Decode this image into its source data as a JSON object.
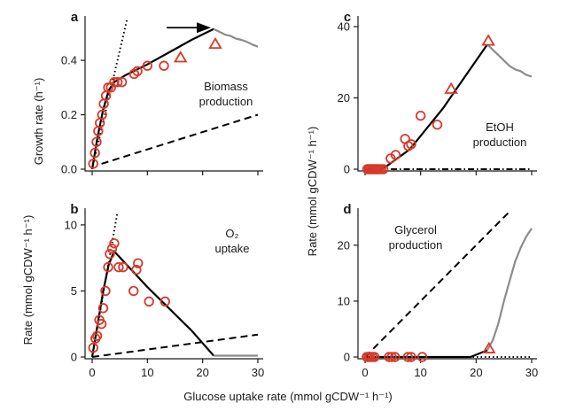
{
  "chart_data": [
    {
      "panel": "a",
      "type": "line",
      "title": "",
      "ylabel": "Growth rate (h⁻¹)",
      "xlim": [
        0,
        30
      ],
      "ylim": [
        0,
        0.55
      ],
      "xticks": [
        0,
        10,
        20,
        30
      ],
      "yticks": [
        0.0,
        0.2,
        0.4
      ],
      "ytick_labels": [
        "0.0",
        "0.2",
        "0.4"
      ],
      "show_xtick_labels": false,
      "annotation_lines": [
        "Biomass",
        "production"
      ],
      "series": [
        {
          "style": "solid-black",
          "x": [
            0,
            1,
            2,
            3,
            4,
            6,
            8,
            10,
            14,
            18,
            22
          ],
          "y": [
            0,
            0.12,
            0.22,
            0.29,
            0.32,
            0.345,
            0.365,
            0.385,
            0.43,
            0.475,
            0.515
          ]
        },
        {
          "style": "solid-gray",
          "x": [
            22,
            23,
            24,
            25,
            26,
            27,
            28,
            29,
            30
          ],
          "y": [
            0.515,
            0.505,
            0.495,
            0.49,
            0.48,
            0.475,
            0.468,
            0.458,
            0.45
          ]
        },
        {
          "style": "dashed",
          "x": [
            1.7,
            30
          ],
          "y": [
            0.02,
            0.2
          ]
        },
        {
          "style": "dotted",
          "x": [
            0,
            6.3
          ],
          "y": [
            0,
            0.55
          ]
        }
      ],
      "circles": {
        "x": [
          0.2,
          0.5,
          0.8,
          1.1,
          1.4,
          1.8,
          2.1,
          2.5,
          2.9,
          3.4,
          4.0,
          4.6,
          5.4,
          7.6,
          8.2,
          10.0,
          13.0
        ],
        "y": [
          0.02,
          0.06,
          0.1,
          0.14,
          0.17,
          0.2,
          0.24,
          0.27,
          0.3,
          0.3,
          0.32,
          0.32,
          0.32,
          0.35,
          0.36,
          0.38,
          0.38
        ]
      },
      "triangles": {
        "x": [
          16.0,
          22.3
        ],
        "y": [
          0.41,
          0.46
        ]
      },
      "arrow": {
        "x_from": 13.5,
        "x_to": 21.5,
        "y": 0.52
      }
    },
    {
      "panel": "b",
      "type": "line",
      "title": "",
      "ylabel": "Rate (mmol gCDW⁻¹ h⁻¹)",
      "xlim": [
        0,
        30
      ],
      "ylim": [
        0,
        11
      ],
      "xticks": [
        0,
        10,
        20,
        30
      ],
      "yticks": [
        0,
        5,
        10
      ],
      "ytick_labels": [
        "0",
        "5",
        "10"
      ],
      "show_xtick_labels": true,
      "annotation_lines": [
        "O₂",
        "uptake"
      ],
      "series": [
        {
          "style": "solid-black",
          "x": [
            0,
            1,
            2,
            3,
            4,
            10,
            18,
            22
          ],
          "y": [
            0,
            2.5,
            5,
            7,
            8,
            5.3,
            2,
            0.1
          ]
        },
        {
          "style": "solid-gray",
          "x": [
            22,
            30
          ],
          "y": [
            0.1,
            0.1
          ]
        },
        {
          "style": "dashed",
          "x": [
            0,
            30
          ],
          "y": [
            0,
            1.7
          ]
        },
        {
          "style": "dotted",
          "x": [
            0,
            4.5
          ],
          "y": [
            0,
            10.8
          ]
        }
      ],
      "circles": {
        "x": [
          0.2,
          0.6,
          0.9,
          1.3,
          1.7,
          2.0,
          2.4,
          2.9,
          3.2,
          3.6,
          4.0,
          4.8,
          5.6,
          7.5,
          8.0,
          8.3,
          10.3,
          13.2
        ],
        "y": [
          0.7,
          1.4,
          1.6,
          2.8,
          2.5,
          3.7,
          5.0,
          6.8,
          7.8,
          8.2,
          8.6,
          6.8,
          6.8,
          5.0,
          6.6,
          7.1,
          4.2,
          4.2
        ]
      },
      "triangles": {
        "x": [],
        "y": []
      }
    },
    {
      "panel": "c",
      "type": "line",
      "title": "",
      "ylabel": "",
      "xlim": [
        0,
        30
      ],
      "ylim": [
        0,
        42
      ],
      "xticks": [
        0,
        10,
        20,
        30
      ],
      "yticks": [
        0,
        20,
        40
      ],
      "ytick_labels": [
        "0",
        "20",
        "40"
      ],
      "show_xtick_labels": false,
      "annotation_lines": [
        "EtOH",
        "production"
      ],
      "series": [
        {
          "style": "solid-black",
          "x": [
            0,
            3,
            4,
            8,
            14,
            18,
            22
          ],
          "y": [
            0,
            0,
            1,
            5.5,
            17,
            26,
            35
          ]
        },
        {
          "style": "solid-gray",
          "x": [
            22,
            23,
            24,
            25,
            26,
            27,
            28,
            29,
            30
          ],
          "y": [
            35,
            33.5,
            32,
            30.5,
            29,
            28,
            27.5,
            26.5,
            26
          ]
        },
        {
          "style": "dashdot",
          "x": [
            0,
            30
          ],
          "y": [
            0,
            0
          ]
        }
      ],
      "circles": {
        "x": [
          0.4,
          0.7,
          1.0,
          1.3,
          1.6,
          1.9,
          2.2,
          2.5,
          2.9,
          3.3,
          4.6,
          5.5,
          7.2,
          7.8,
          8.3,
          10.0,
          13.0
        ],
        "y": [
          0,
          0,
          0,
          0,
          0,
          0,
          0,
          0,
          0,
          0,
          3,
          4,
          8.5,
          6.5,
          7,
          15,
          12.5
        ]
      },
      "triangles": {
        "x": [
          15.5,
          22.2
        ],
        "y": [
          22.5,
          36
        ]
      }
    },
    {
      "panel": "d",
      "type": "line",
      "title": "",
      "ylabel": "",
      "xlim": [
        0,
        30
      ],
      "ylim": [
        0,
        26
      ],
      "xticks": [
        0,
        10,
        20,
        30
      ],
      "yticks": [
        0,
        10,
        20
      ],
      "ytick_labels": [
        "0",
        "10",
        "20"
      ],
      "show_xtick_labels": true,
      "annotation_lines": [
        "Glycerol",
        "production"
      ],
      "series": [
        {
          "style": "solid-black",
          "x": [
            0,
            19,
            22
          ],
          "y": [
            0,
            0,
            1.2
          ]
        },
        {
          "style": "solid-gray",
          "x": [
            22,
            23,
            24,
            25,
            26,
            27,
            28,
            29,
            30
          ],
          "y": [
            1.2,
            3,
            6,
            10,
            13.5,
            17,
            19.5,
            21.5,
            23
          ]
        },
        {
          "style": "dashed",
          "x": [
            0,
            26
          ],
          "y": [
            0,
            26
          ]
        },
        {
          "style": "dotted",
          "x": [
            0,
            30
          ],
          "y": [
            0,
            0
          ]
        }
      ],
      "circles": {
        "x": [
          0.3,
          0.6,
          0.9,
          1.3,
          1.7,
          4.3,
          4.8,
          5.4,
          7.7,
          8.3,
          10.3
        ],
        "y": [
          0,
          0,
          0,
          0,
          0,
          0,
          0,
          0,
          0,
          0,
          0
        ]
      },
      "triangles": {
        "x": [
          22.3
        ],
        "y": [
          1.5
        ]
      }
    }
  ],
  "shared": {
    "xlabel": "Glucose uptake rate (mmol gCDW⁻¹ h⁻¹)",
    "right_ylabel": "Rate (mmol gCDW⁻¹ h⁻¹)"
  },
  "colors": {
    "marker": "#d63a2a",
    "line": "#000000",
    "gray_line": "#8c8c8c",
    "axis": "#1a1a1a"
  }
}
